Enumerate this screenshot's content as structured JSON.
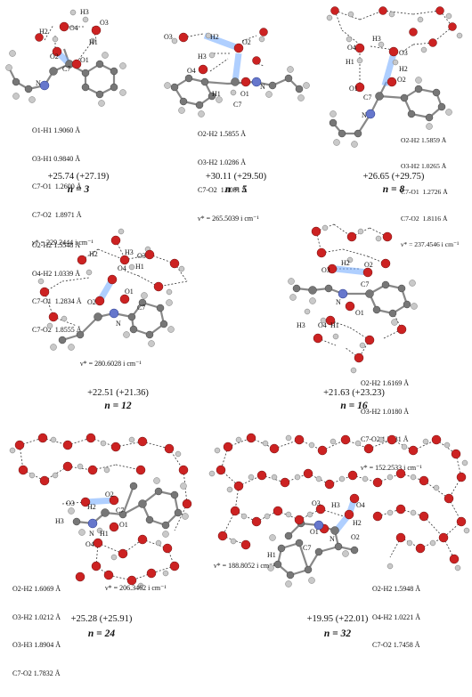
{
  "panels": [
    {
      "id": "n3",
      "atom_labels": [
        "H2",
        "O4",
        "H3",
        "O3",
        "H1",
        "O2",
        "O1",
        "C7",
        "N"
      ],
      "info_lines": [
        "O1-H1 1.9060 Å",
        "O3-H1 0.9840 Å",
        "C7-O1  1.2600 Å",
        "C7-O2  1.8971 Å",
        "ν* = 229.2444 i cm⁻¹"
      ],
      "energy": "+25.74 (+27.19)",
      "n_label": "n = 3"
    },
    {
      "id": "n5",
      "atom_labels": [
        "O3",
        "H2",
        "O2",
        "H3",
        "O4",
        "H1",
        "O1",
        "N",
        "C7"
      ],
      "info_lines": [
        "O2-H2 1.5855 Å",
        "O3-H2 1.0286 Å",
        "C7-O2  1.9081 Å",
        "ν* = 265.5039 i cm⁻¹"
      ],
      "energy": "+30.11 (+29.50)",
      "n_label": "n = 5"
    },
    {
      "id": "n8",
      "atom_labels": [
        "O4",
        "H3",
        "H1",
        "O3",
        "H2",
        "O1",
        "O2",
        "C7",
        "N"
      ],
      "info_lines": [
        "O2-H2 1.5859 Å",
        "O3-H2 1.0265 Å",
        "C7-O1  1.2726 Å",
        "C7-O2  1.8116 Å",
        "ν* = 237.4546 i cm⁻¹"
      ],
      "energy": "+26.65 (+29.75)",
      "n_label": "n = 8"
    },
    {
      "id": "n12",
      "atom_labels": [
        "H2",
        "O4",
        "H3",
        "O3",
        "H1",
        "O2",
        "O1",
        "C7",
        "N"
      ],
      "info_lines": [
        "O2-H2 1.5548 Å",
        "O4-H2 1.0339 Å",
        "C7-O1  1.2834 Å",
        "C7-O2  1.8555 Å"
      ],
      "freq": "ν* = 280.6028 i cm⁻¹",
      "energy": "+22.51 (+21.36)",
      "n_label": "n = 12"
    },
    {
      "id": "n16",
      "atom_labels": [
        "O3",
        "H2",
        "O2",
        "N",
        "C7",
        "H3",
        "O4",
        "H1",
        "O1"
      ],
      "info_lines": [
        "O2-H2 1.6169 Å",
        "O3-H2 1.0180 Å",
        "C7-O2 1.7231 Å",
        "ν* = 152.2533 i cm⁻¹"
      ],
      "energy": "+21.63 (+23.23)",
      "n_label": "n = 16"
    },
    {
      "id": "n24",
      "atom_labels": [
        "O3",
        "H2",
        "O2",
        "C7",
        "H3",
        "N",
        "H1",
        "O1",
        "O4"
      ],
      "info_lines": [
        "O2-H2 1.6069 Å",
        "O3-H2 1.0212 Å",
        "O3-H3 1.8904 Å",
        "C7-O2 1.7832 Å"
      ],
      "freq": "ν* = 206.3462 i cm⁻¹",
      "energy": "+25.28 (+25.91)",
      "n_label": "n = 24"
    },
    {
      "id": "n32",
      "atom_labels": [
        "O3",
        "H3",
        "O4",
        "O1",
        "H2",
        "O2",
        "H1",
        "C7",
        "N"
      ],
      "info_lines": [
        "O2-H2 1.5948 Å",
        "O4-H2 1.0221 Å",
        "C7-O2 1.7458 Å"
      ],
      "freq": "ν* = 188.8052 i cm⁻¹",
      "energy": "+19.95 (+22.01)",
      "n_label": "n = 32"
    }
  ]
}
